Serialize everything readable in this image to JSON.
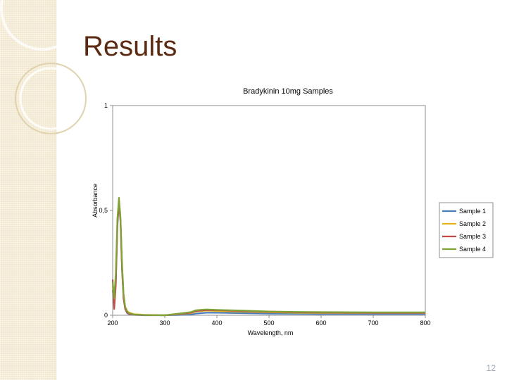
{
  "slide": {
    "title": "Results",
    "number": "12"
  },
  "chart_data": {
    "type": "line",
    "title": "Bradykinin 10mg Samples",
    "xlabel": "Wavelength, nm",
    "ylabel": "Absorbance",
    "xlim": [
      200,
      800
    ],
    "ylim": [
      0,
      1
    ],
    "x_ticks": [
      "200",
      "300",
      "400",
      "500",
      "600",
      "700",
      "800"
    ],
    "y_ticks": [
      "0",
      "0,5",
      "1"
    ],
    "grid": false,
    "legend_position": "right",
    "series": [
      {
        "name": "Sample 1",
        "color": "#4a7ebb",
        "x": [
          200,
          203,
          206,
          209,
          212,
          215,
          218,
          221,
          224,
          228,
          232,
          240,
          260,
          300,
          350,
          360,
          380,
          400,
          450,
          500,
          550,
          600,
          700,
          800
        ],
        "y": [
          0.12,
          0.05,
          0.15,
          0.42,
          0.54,
          0.45,
          0.22,
          0.08,
          0.03,
          0.01,
          0.005,
          0.002,
          0.0,
          0.0,
          0.003,
          0.008,
          0.012,
          0.012,
          0.01,
          0.008,
          0.007,
          0.006,
          0.006,
          0.006
        ]
      },
      {
        "name": "Sample 2",
        "color": "#e8b41c",
        "x": [
          200,
          203,
          206,
          209,
          212,
          215,
          218,
          221,
          224,
          228,
          232,
          240,
          260,
          300,
          350,
          360,
          380,
          400,
          450,
          500,
          550,
          600,
          700,
          800
        ],
        "y": [
          0.14,
          0.06,
          0.17,
          0.44,
          0.55,
          0.46,
          0.24,
          0.1,
          0.04,
          0.02,
          0.012,
          0.006,
          0.002,
          0.0,
          0.01,
          0.018,
          0.022,
          0.02,
          0.017,
          0.014,
          0.012,
          0.011,
          0.011,
          0.011
        ]
      },
      {
        "name": "Sample 3",
        "color": "#be4b48",
        "x": [
          200,
          203,
          206,
          209,
          212,
          215,
          218,
          221,
          224,
          228,
          232,
          240,
          260,
          300,
          350,
          360,
          380,
          400,
          450,
          500,
          550,
          600,
          700,
          800
        ],
        "y": [
          0.17,
          0.03,
          0.14,
          0.43,
          0.545,
          0.45,
          0.22,
          0.08,
          0.03,
          0.012,
          0.006,
          0.003,
          0.001,
          0.0,
          0.012,
          0.02,
          0.025,
          0.024,
          0.02,
          0.016,
          0.014,
          0.013,
          0.012,
          0.012
        ]
      },
      {
        "name": "Sample 4",
        "color": "#7ea437",
        "x": [
          200,
          203,
          206,
          209,
          212,
          215,
          218,
          221,
          224,
          228,
          232,
          240,
          260,
          300,
          350,
          360,
          380,
          400,
          450,
          500,
          550,
          600,
          700,
          800
        ],
        "y": [
          0.16,
          0.08,
          0.2,
          0.46,
          0.56,
          0.47,
          0.25,
          0.1,
          0.04,
          0.018,
          0.01,
          0.004,
          0.001,
          0.0,
          0.015,
          0.024,
          0.028,
          0.026,
          0.022,
          0.018,
          0.016,
          0.015,
          0.014,
          0.014
        ]
      }
    ]
  }
}
